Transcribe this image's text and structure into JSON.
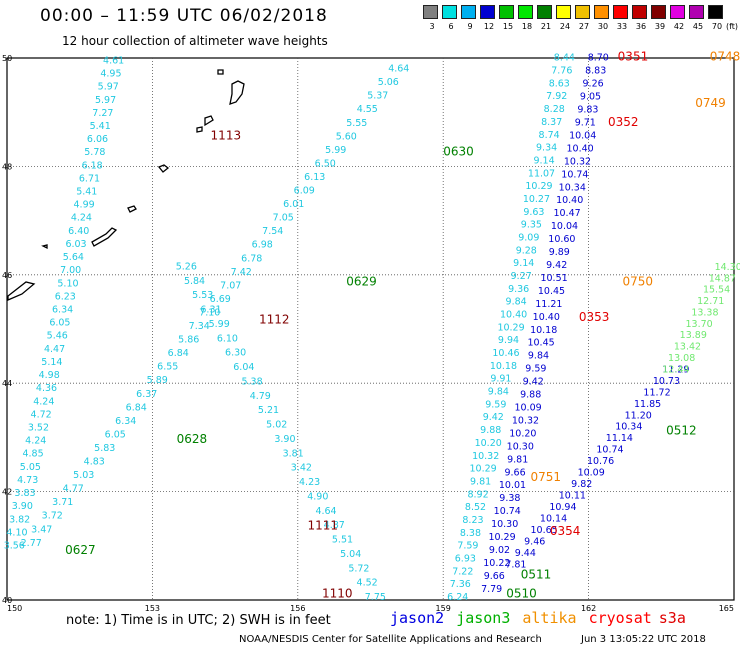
{
  "header": {
    "title": "00:00 – 11:59 UTC 06/02/2018",
    "subtitle": "12 hour collection of altimeter wave heights"
  },
  "colorbar": {
    "unit": "(ft)",
    "bins": [
      {
        "label": "3",
        "color": "#808080"
      },
      {
        "label": "6",
        "color": "#00e0e0"
      },
      {
        "label": "9",
        "color": "#00b0f0"
      },
      {
        "label": "12",
        "color": "#0000d0"
      },
      {
        "label": "15",
        "color": "#00c000"
      },
      {
        "label": "18",
        "color": "#00e800"
      },
      {
        "label": "21",
        "color": "#008000"
      },
      {
        "label": "24",
        "color": "#ffff00"
      },
      {
        "label": "27",
        "color": "#f0c000"
      },
      {
        "label": "30",
        "color": "#ff9000"
      },
      {
        "label": "33",
        "color": "#ff0000"
      },
      {
        "label": "36",
        "color": "#c00000"
      },
      {
        "label": "39",
        "color": "#800000"
      },
      {
        "label": "42",
        "color": "#e000e0"
      },
      {
        "label": "45",
        "color": "#b000b0"
      },
      {
        "label": "70",
        "color": "#000000"
      }
    ]
  },
  "axes": {
    "lon_ticks": [
      "150",
      "153",
      "156",
      "159",
      "162",
      "165"
    ],
    "lat_ticks": [
      "50",
      "48",
      "46",
      "44",
      "42",
      "40"
    ]
  },
  "labels": [
    {
      "text": "0627",
      "lon": 151.2,
      "lat": 40.85,
      "color": "#008000"
    },
    {
      "text": "0628",
      "lon": 153.5,
      "lat": 42.9,
      "color": "#008000"
    },
    {
      "text": "0629",
      "lon": 157.0,
      "lat": 45.8,
      "color": "#008000"
    },
    {
      "text": "0630",
      "lon": 159.0,
      "lat": 48.2,
      "color": "#008000"
    },
    {
      "text": "1110",
      "lon": 156.5,
      "lat": 40.05,
      "color": "#800000"
    },
    {
      "text": "1111",
      "lon": 156.2,
      "lat": 41.3,
      "color": "#800000"
    },
    {
      "text": "1112",
      "lon": 155.2,
      "lat": 45.1,
      "color": "#800000"
    },
    {
      "text": "1113",
      "lon": 154.2,
      "lat": 48.5,
      "color": "#800000"
    },
    {
      "text": "0351",
      "lon": 162.6,
      "lat": 49.95,
      "color": "#e00000"
    },
    {
      "text": "0352",
      "lon": 162.4,
      "lat": 48.75,
      "color": "#e00000"
    },
    {
      "text": "0353",
      "lon": 161.8,
      "lat": 45.15,
      "color": "#e00000"
    },
    {
      "text": "0354",
      "lon": 161.2,
      "lat": 41.2,
      "color": "#e00000"
    },
    {
      "text": "0748",
      "lon": 164.5,
      "lat": 49.95,
      "color": "#f08000"
    },
    {
      "text": "0749",
      "lon": 164.2,
      "lat": 49.1,
      "color": "#f08000"
    },
    {
      "text": "0750",
      "lon": 162.7,
      "lat": 45.8,
      "color": "#f08000"
    },
    {
      "text": "0751",
      "lon": 160.8,
      "lat": 42.2,
      "color": "#f08000"
    },
    {
      "text": "0510",
      "lon": 160.3,
      "lat": 40.05,
      "color": "#008000"
    },
    {
      "text": "0511",
      "lon": 160.6,
      "lat": 40.4,
      "color": "#008000"
    },
    {
      "text": "0512",
      "lon": 163.6,
      "lat": 43.05,
      "color": "#008000"
    }
  ],
  "tracks": [
    {
      "satellite": "jason3",
      "color": "#20c8e0",
      "start": [
        150.15,
        40.95
      ],
      "end": [
        152.2,
        49.9
      ],
      "values": [
        "3.56",
        "4.10",
        "3.82",
        "3.90",
        "3.83",
        "4.73",
        "5.05",
        "4.85",
        "4.24",
        "3.52",
        "4.72",
        "4.24",
        "4.36",
        "4.98",
        "5.14",
        "4.47",
        "5.46",
        "6.05",
        "6.34",
        "6.23",
        "5.10",
        "7.00",
        "5.64",
        "6.03",
        "6.40",
        "4.24",
        "4.99",
        "5.41",
        "6.71",
        "6.18",
        "5.78",
        "6.06",
        "5.41",
        "7.27",
        "5.97",
        "5.97",
        "4.95",
        "4.61"
      ]
    },
    {
      "satellite": "jason3",
      "color": "#20c8e0",
      "start": [
        150.5,
        41.0
      ],
      "end": [
        158.3,
        50.0
      ],
      "values": [
        "2.77",
        "3.47",
        "3.72",
        "3.71",
        "4.77",
        "5.03",
        "4.83",
        "5.83",
        "6.05",
        "6.34",
        "6.84",
        "6.37",
        "5.89",
        "6.55",
        "6.84",
        "5.86",
        "7.34",
        "7.10",
        "6.69",
        "7.07",
        "7.42",
        "6.78",
        "6.98",
        "7.54",
        "7.05",
        "6.01",
        "6.09",
        "6.13",
        "6.50",
        "5.99",
        "5.60",
        "5.55",
        "4.55",
        "5.37",
        "5.06",
        "4.64",
        "5.14"
      ]
    },
    {
      "satellite": "jason2",
      "color": "#20c8e0",
      "start": [
        157.6,
        40.0
      ],
      "end": [
        153.7,
        46.1
      ],
      "values": [
        "7.75",
        "4.52",
        "5.72",
        "5.04",
        "5.51",
        "4.87",
        "4.64",
        "4.90",
        "4.23",
        "3.42",
        "3.81",
        "3.90",
        "5.02",
        "5.21",
        "4.79",
        "5.38",
        "6.04",
        "6.30",
        "6.10",
        "5.99",
        "6.31",
        "5.53",
        "5.84",
        "5.26"
      ]
    },
    {
      "satellite": "jason2",
      "color": "#20c8e0",
      "start": [
        159.3,
        40.0
      ],
      "end": [
        161.5,
        49.95
      ],
      "values": [
        "6.24",
        "7.36",
        "7.22",
        "6.93",
        "7.59",
        "8.38",
        "8.23",
        "8.52",
        "8.92",
        "9.81",
        "10.29",
        "10.32",
        "10.20",
        "9.88",
        "9.42",
        "9.59",
        "9.84",
        "9.91",
        "10.18",
        "10.46",
        "9.94",
        "10.29",
        "10.40",
        "9.84",
        "9.36",
        "9.27",
        "9.14",
        "9.28",
        "9.09",
        "9.35",
        "9.63",
        "10.27",
        "10.29",
        "11.07",
        "9.14",
        "9.34",
        "8.74",
        "8.37",
        "8.28",
        "7.92",
        "8.63",
        "7.76",
        "8.44"
      ]
    },
    {
      "satellite": "jason2",
      "color": "#0000d0",
      "start": [
        160.0,
        40.15
      ],
      "end": [
        162.2,
        49.95
      ],
      "values": [
        "7.79",
        "9.66",
        "10.22",
        "9.02",
        "10.29",
        "10.30",
        "10.74",
        "9.38",
        "10.01",
        "9.66",
        "9.81",
        "10.30",
        "10.20",
        "10.32",
        "10.09",
        "9.88",
        "9.42",
        "9.59",
        "9.84",
        "10.45",
        "10.18",
        "10.40",
        "11.21",
        "10.45",
        "10.51",
        "9.42",
        "9.89",
        "10.60",
        "10.04",
        "10.47",
        "10.40",
        "10.34",
        "10.74",
        "10.32",
        "10.40",
        "10.04",
        "9.71",
        "9.83",
        "9.05",
        "9.26",
        "8.83",
        "8.70"
      ]
    },
    {
      "satellite": "jason2",
      "color": "#0000d0",
      "start": [
        160.5,
        40.6
      ],
      "end": [
        163.8,
        44.2
      ],
      "values": [
        "7.81",
        "9.44",
        "9.46",
        "10.65",
        "10.14",
        "10.94",
        "10.11",
        "9.82",
        "10.09",
        "10.76",
        "10.74",
        "11.14",
        "10.34",
        "11.20",
        "11.85",
        "11.72",
        "10.73",
        "11.29"
      ]
    },
    {
      "satellite": "jason3",
      "color": "#70e870",
      "start": [
        163.8,
        44.2
      ],
      "end": [
        165.0,
        46.3
      ],
      "values": [
        "12.44",
        "13.08",
        "13.42",
        "13.89",
        "13.70",
        "13.38",
        "12.71",
        "15.54",
        "14.87",
        "14.30",
        "15.7"
      ]
    }
  ],
  "footer": {
    "note": "note:  1) Time is in UTC;  2) SWH is in feet",
    "satellites": [
      {
        "name": "jason2",
        "color": "#0000e0"
      },
      {
        "name": "jason3",
        "color": "#00b000"
      },
      {
        "name": "altika",
        "color": "#f09000"
      },
      {
        "name": "cryosat",
        "color": "#ff0000"
      },
      {
        "name": "s3a",
        "color": "#e00000"
      }
    ],
    "credit": "NOAA/NESDIS Center for Satellite Applications and Research",
    "timestamp": "Jun  3 13:05:22 UTC 2018"
  }
}
